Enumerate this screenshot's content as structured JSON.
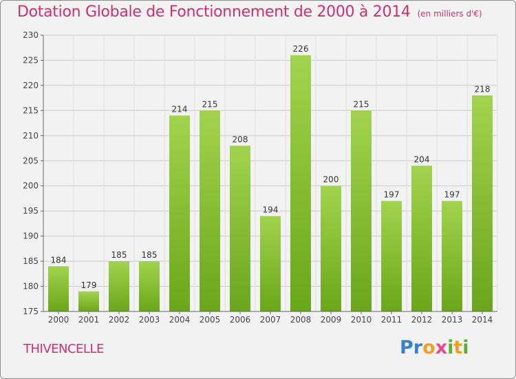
{
  "title": "Dotation Globale de Fonctionnement de 2000 à 2014",
  "subtitle": "(en milliers d'€)",
  "commune": "THIVENCELLE",
  "logo": {
    "text": "Proxiti",
    "colors": [
      "#3a7fd0",
      "#f0a020",
      "#e84a8a",
      "#5ab030"
    ]
  },
  "colors": {
    "accent": "#cc2e6e",
    "bar_light": "#9fd04a",
    "bar_dark": "#6aa61c",
    "grid": "#cccccc",
    "background": "#f2f2f2"
  },
  "chart_data": {
    "type": "bar",
    "title": "Dotation Globale de Fonctionnement de 2000 à 2014",
    "subtitle": "(en milliers d'€)",
    "xlabel": "",
    "ylabel": "",
    "categories": [
      "2000",
      "2001",
      "2002",
      "2003",
      "2004",
      "2005",
      "2006",
      "2007",
      "2008",
      "2009",
      "2010",
      "2011",
      "2012",
      "2013",
      "2014"
    ],
    "values": [
      184,
      179,
      185,
      185,
      214,
      215,
      208,
      194,
      226,
      200,
      215,
      197,
      204,
      197,
      218
    ],
    "ylim": [
      175,
      230
    ],
    "yticks": [
      175,
      180,
      185,
      190,
      195,
      200,
      205,
      210,
      215,
      220,
      225,
      230
    ],
    "grid": true,
    "data_labels": true
  }
}
